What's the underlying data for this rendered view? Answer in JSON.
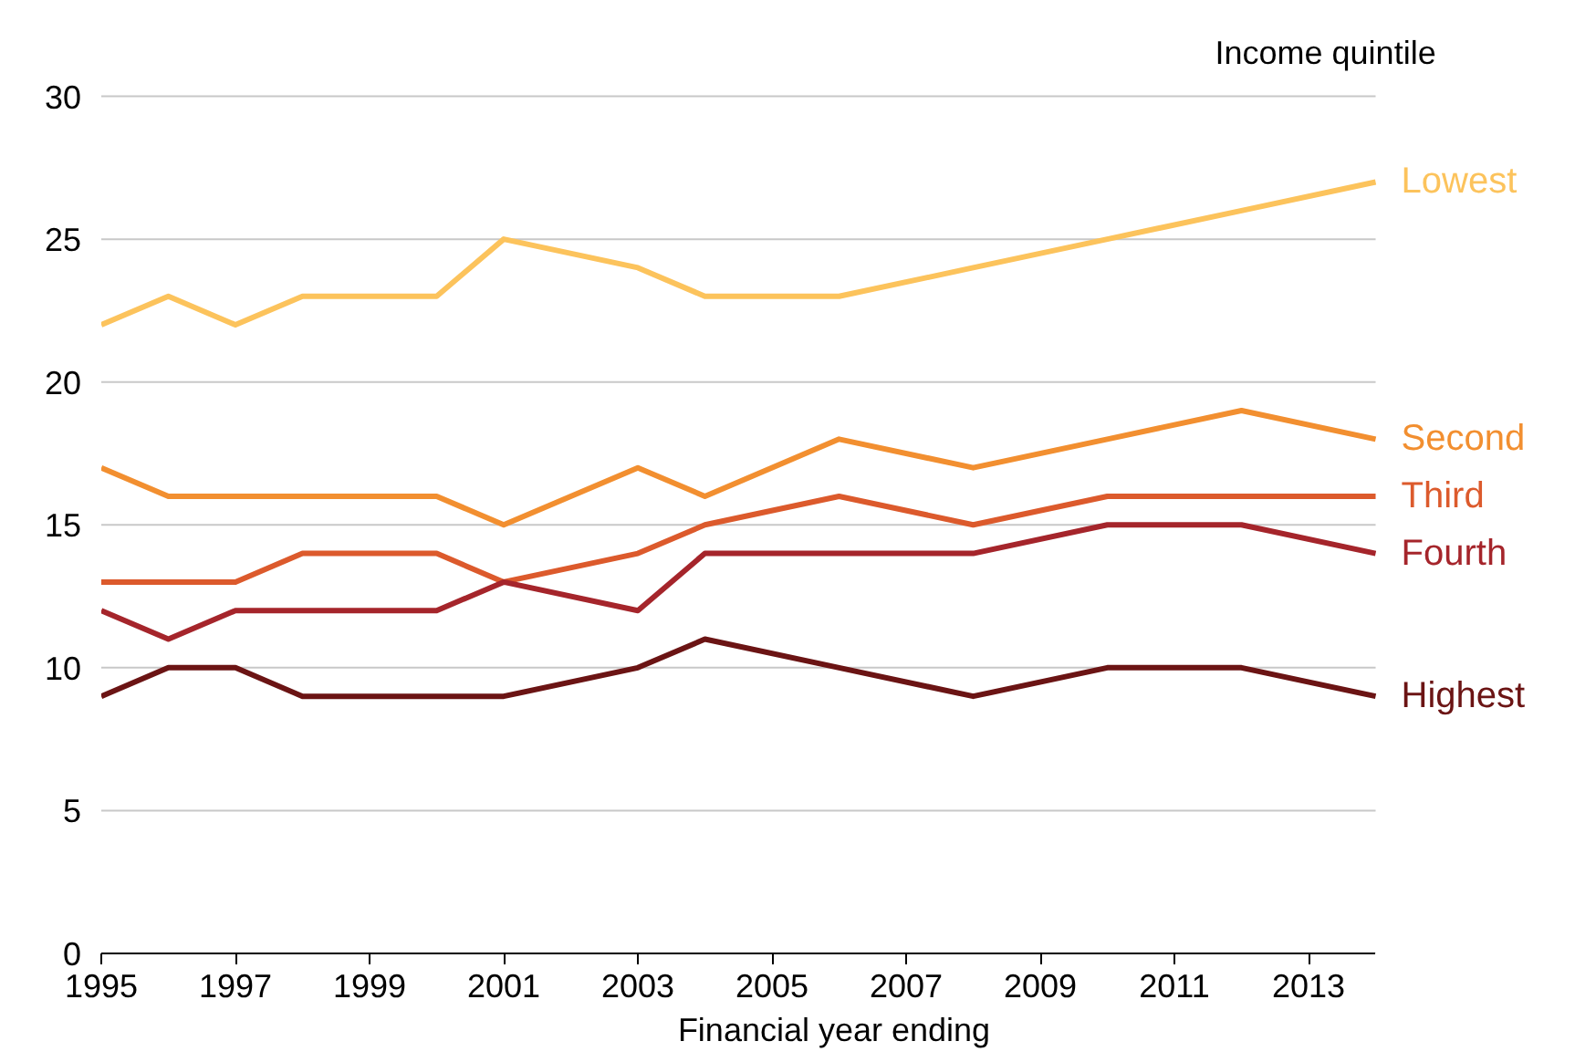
{
  "chart_data": {
    "type": "line",
    "legend_title": "Income quintile",
    "xlabel": "Financial year ending",
    "x": [
      1995,
      1996,
      1997,
      1998,
      1999,
      2000,
      2001,
      2002,
      2003,
      2004,
      2006,
      2008,
      2010,
      2012,
      2014
    ],
    "series": [
      {
        "name": "Lowest",
        "color": "#fcc35c",
        "values": [
          22,
          23,
          22,
          23,
          23,
          23,
          25,
          null,
          24,
          23,
          23,
          24,
          25,
          26,
          27
        ]
      },
      {
        "name": "Second",
        "color": "#f28f30",
        "values": [
          17,
          16,
          16,
          16,
          16,
          16,
          15,
          null,
          17,
          16,
          18,
          17,
          18,
          19,
          18
        ]
      },
      {
        "name": "Third",
        "color": "#dc5a2c",
        "values": [
          13,
          13,
          13,
          14,
          14,
          14,
          13,
          null,
          14,
          15,
          16,
          15,
          16,
          16,
          16
        ]
      },
      {
        "name": "Fourth",
        "color": "#a5252b",
        "values": [
          12,
          11,
          12,
          12,
          12,
          12,
          13,
          null,
          12,
          14,
          14,
          14,
          15,
          15,
          14
        ]
      },
      {
        "name": "Highest",
        "color": "#6b1414",
        "values": [
          9,
          10,
          10,
          9,
          9,
          9,
          9,
          null,
          10,
          11,
          10,
          9,
          10,
          10,
          9
        ]
      }
    ],
    "xlim": [
      1995,
      2014
    ],
    "xticks": [
      1995,
      1997,
      1999,
      2001,
      2003,
      2005,
      2007,
      2009,
      2011,
      2013
    ],
    "ylim": [
      0,
      30
    ],
    "yticks": [
      0,
      5,
      10,
      15,
      20,
      25,
      30
    ],
    "grid": "y",
    "marker": "none",
    "line_style": "solid"
  }
}
